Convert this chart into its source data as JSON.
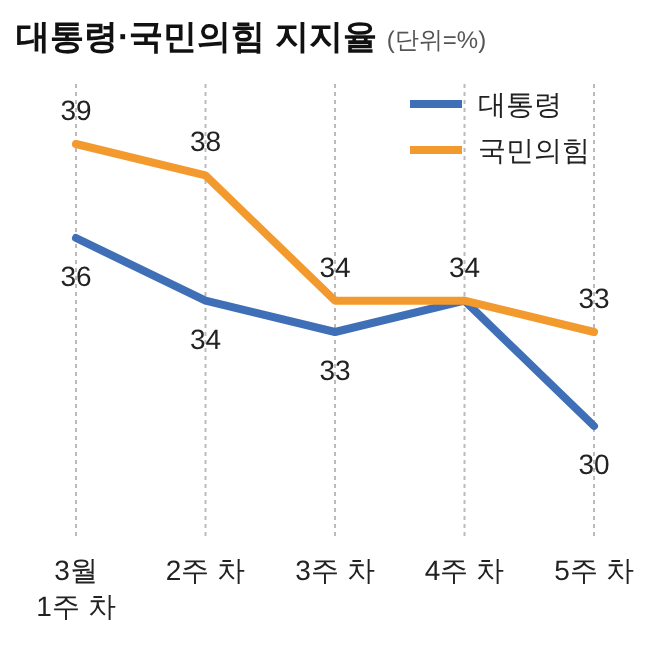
{
  "chart_data": {
    "type": "line",
    "title": "대통령·국민의힘 지지율",
    "subtitle": "(단위=%)",
    "categories": [
      "3월\n1주 차",
      "2주 차",
      "3주 차",
      "4주 차",
      "5주 차"
    ],
    "series": [
      {
        "name": "대통령",
        "color": "#3f6fb6",
        "values": [
          36,
          34,
          33,
          34,
          30
        ],
        "value_labels": [
          "36",
          "34",
          "33",
          "34",
          "30"
        ]
      },
      {
        "name": "국민의힘",
        "color": "#f39a2e",
        "values": [
          39,
          38,
          34,
          34,
          33
        ],
        "value_labels": [
          "39",
          "38",
          "34",
          null,
          "33"
        ]
      }
    ],
    "legend": "top right",
    "grid": "x",
    "marker": "none",
    "line_style": "solid"
  }
}
